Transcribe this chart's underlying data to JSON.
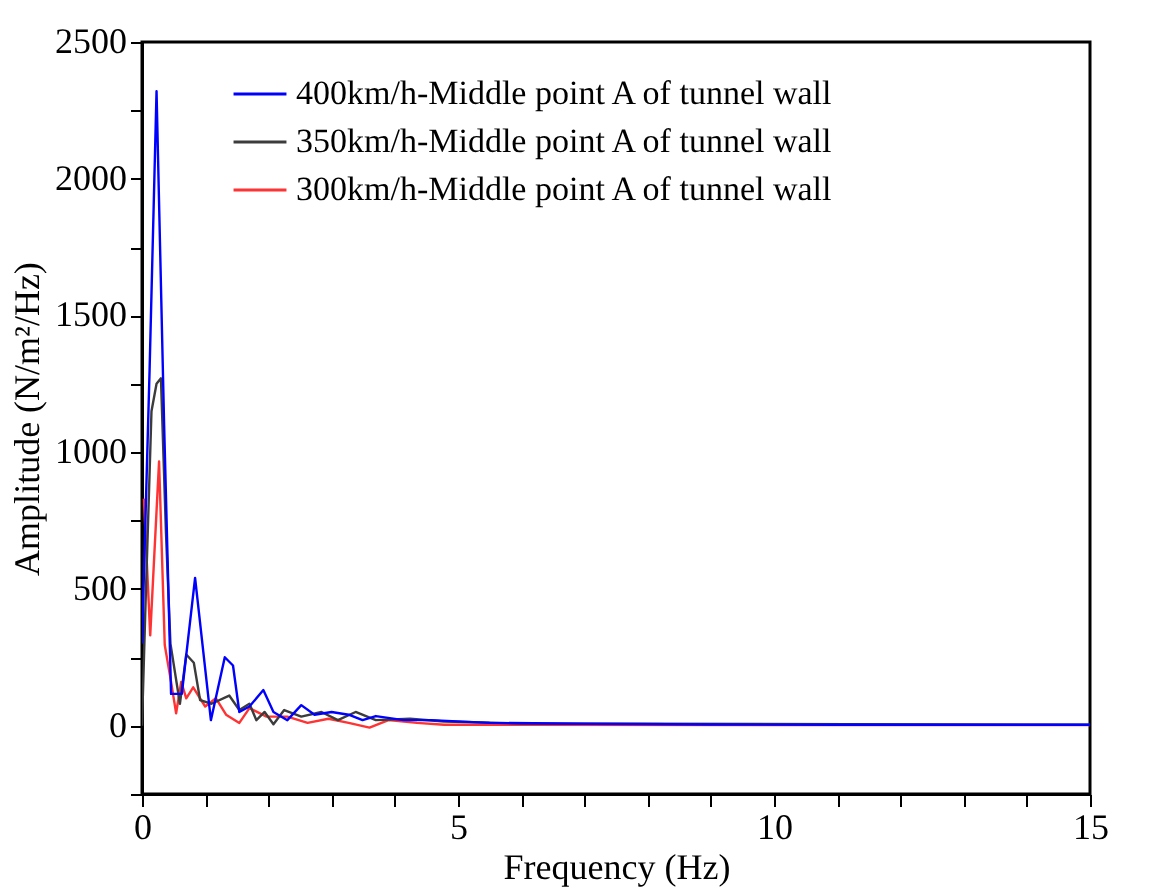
{
  "chart_data": {
    "type": "line",
    "xlabel": "Frequency (Hz)",
    "ylabel": "Amplitude (N/m²/Hz)",
    "xlim": [
      0,
      15
    ],
    "ylim": [
      -250,
      2500
    ],
    "xticks": [
      0,
      {
        "value": 1,
        "label": null
      },
      {
        "value": 2,
        "label": null
      },
      {
        "value": 3,
        "label": null
      },
      {
        "value": 4,
        "label": null
      },
      5,
      {
        "value": 6,
        "label": null
      },
      {
        "value": 7,
        "label": null
      },
      {
        "value": 8,
        "label": null
      },
      {
        "value": 9,
        "label": null
      },
      10,
      {
        "value": 11,
        "label": null
      },
      {
        "value": 12,
        "label": null
      },
      {
        "value": 13,
        "label": null
      },
      {
        "value": 14,
        "label": null
      },
      15
    ],
    "yticks": [
      {
        "value": -250,
        "label": null
      },
      0,
      {
        "value": 250,
        "label": null
      },
      500,
      {
        "value": 750,
        "label": null
      },
      1000,
      {
        "value": 1250,
        "label": null
      },
      1500,
      {
        "value": 1750,
        "label": null
      },
      2000,
      {
        "value": 2250,
        "label": null
      },
      2500
    ],
    "grid": false,
    "legend": "top",
    "marker": "none",
    "line_style": "solid",
    "series": [
      {
        "name": "400km/h-Middle point A of tunnel wall",
        "color": "#0000ff",
        "x": [
          0,
          0.12,
          0.23,
          0.35,
          0.46,
          0.63,
          0.84,
          1.09,
          1.31,
          1.44,
          1.54,
          1.7,
          1.92,
          2.08,
          2.3,
          2.52,
          2.73,
          3.0,
          3.27,
          3.49,
          3.7,
          4.14,
          4.57,
          5.5,
          7,
          9,
          11,
          13,
          15
        ],
        "values": [
          300,
          1300,
          2320,
          1100,
          116,
          116,
          540,
          20,
          250,
          220,
          50,
          70,
          130,
          50,
          20,
          75,
          40,
          50,
          40,
          20,
          35,
          20,
          20,
          10,
          7,
          4,
          3,
          3,
          3
        ]
      },
      {
        "name": "350km/h-Middle point A of tunnel wall",
        "color": "#3c3c3c",
        "x": [
          0,
          0.05,
          0.15,
          0.23,
          0.3,
          0.38,
          0.45,
          0.6,
          0.7,
          0.82,
          0.92,
          1.1,
          1.38,
          1.54,
          1.7,
          1.81,
          1.94,
          2.08,
          2.25,
          2.52,
          2.84,
          3.1,
          3.38,
          3.7,
          4.24,
          4.78,
          6,
          15
        ],
        "values": [
          0,
          400,
          1150,
          1250,
          1270,
          700,
          300,
          80,
          260,
          230,
          93,
          80,
          110,
          57,
          80,
          20,
          50,
          5,
          57,
          33,
          50,
          20,
          50,
          20,
          25,
          15,
          8,
          3
        ]
      },
      {
        "name": "300km/h-Middle point A of tunnel wall",
        "color": "#ff3333",
        "x": [
          0.03,
          0.13,
          0.27,
          0.36,
          0.46,
          0.54,
          0.62,
          0.7,
          0.81,
          1.0,
          1.17,
          1.33,
          1.54,
          1.7,
          1.97,
          2.3,
          2.62,
          2.95,
          3.27,
          3.6,
          3.9,
          4.35,
          4.78,
          6,
          15
        ],
        "values": [
          830,
          330,
          966,
          295,
          160,
          45,
          160,
          100,
          140,
          70,
          100,
          40,
          10,
          64,
          33,
          33,
          10,
          25,
          10,
          -7,
          20,
          10,
          3,
          3,
          2
        ]
      }
    ]
  }
}
